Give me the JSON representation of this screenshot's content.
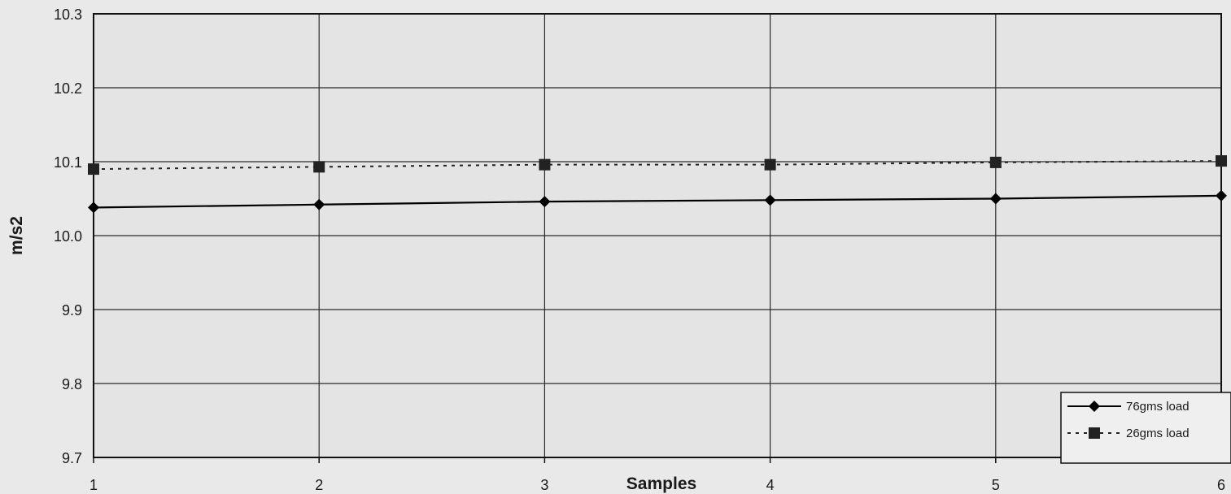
{
  "chart_data": {
    "type": "line",
    "title": "",
    "xlabel": "Samples",
    "ylabel": "m/s2",
    "x": [
      1,
      2,
      3,
      4,
      5,
      6
    ],
    "ylim": [
      9.7,
      10.3
    ],
    "yticks": [
      "9.7",
      "9.8",
      "9.9",
      "10.0",
      "10.1",
      "10.2",
      "10.3"
    ],
    "xticks": [
      "1",
      "2",
      "3",
      "4",
      "5",
      "6"
    ],
    "grid": true,
    "legend_position": "bottom-right",
    "series": [
      {
        "name": "76gms load",
        "values": [
          10.038,
          10.042,
          10.046,
          10.048,
          10.05,
          10.054
        ],
        "marker": "diamond",
        "line_style": "solid",
        "color": "#000000"
      },
      {
        "name": "26gms load",
        "values": [
          10.09,
          10.093,
          10.096,
          10.096,
          10.099,
          10.101
        ],
        "marker": "square",
        "line_style": "dotted",
        "color": "#222222"
      }
    ]
  }
}
